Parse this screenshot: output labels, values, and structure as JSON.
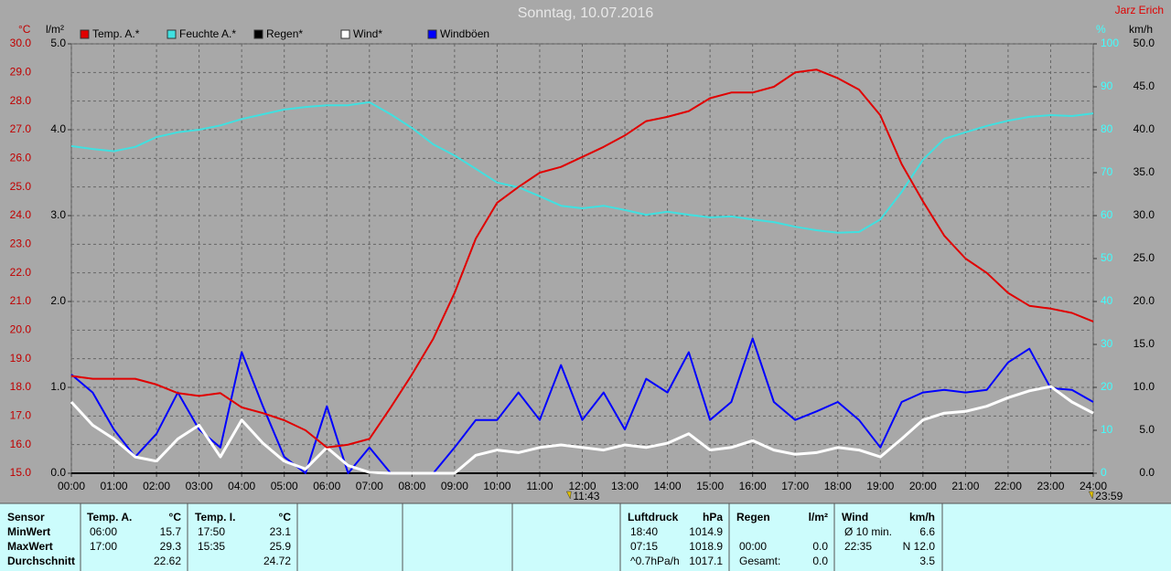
{
  "chart_data": {
    "type": "line",
    "title": "Sonntag, 10.07.2016",
    "subtitle": "Jarz Erich",
    "x": [
      0,
      0.5,
      1,
      1.5,
      2,
      2.5,
      3,
      3.5,
      4,
      4.5,
      5,
      5.5,
      6,
      6.5,
      7,
      7.5,
      8,
      8.5,
      9,
      9.5,
      10,
      10.5,
      11,
      11.5,
      12,
      12.5,
      13,
      13.5,
      14,
      14.5,
      15,
      15.5,
      16,
      16.5,
      17,
      17.5,
      18,
      18.5,
      19,
      19.5,
      20,
      20.5,
      21,
      21.5,
      22,
      22.5,
      23,
      23.5,
      24
    ],
    "xlim": [
      0,
      24
    ],
    "xticks": [
      {
        "value": 0,
        "label": "00:00"
      },
      {
        "value": 1,
        "label": "01:00"
      },
      {
        "value": 2,
        "label": "02:00"
      },
      {
        "value": 3,
        "label": "03:00"
      },
      {
        "value": 4,
        "label": "04:00"
      },
      {
        "value": 5,
        "label": "05:00"
      },
      {
        "value": 6,
        "label": "06:00"
      },
      {
        "value": 7,
        "label": "07:00"
      },
      {
        "value": 8,
        "label": "08:00"
      },
      {
        "value": 9,
        "label": "09:00"
      },
      {
        "value": 10,
        "label": "10:00"
      },
      {
        "value": 11,
        "label": "11:00"
      },
      {
        "value": 12,
        "label": "12:00"
      },
      {
        "value": 13,
        "label": "13:00"
      },
      {
        "value": 14,
        "label": "14:00"
      },
      {
        "value": 15,
        "label": "15:00"
      },
      {
        "value": 16,
        "label": "16:00"
      },
      {
        "value": 17,
        "label": "17:00"
      },
      {
        "value": 18,
        "label": "18:00"
      },
      {
        "value": 19,
        "label": "19:00"
      },
      {
        "value": 20,
        "label": "20:00"
      },
      {
        "value": 21,
        "label": "21:00"
      },
      {
        "value": 22,
        "label": "22:00"
      },
      {
        "value": 23,
        "label": "23:00"
      },
      {
        "value": 24,
        "label": "24:00"
      }
    ],
    "ylabel": "°C",
    "ylim": [
      15,
      30
    ],
    "yticks": [
      {
        "value": 15,
        "label": "15.0"
      },
      {
        "value": 16,
        "label": "16.0"
      },
      {
        "value": 17,
        "label": "17.0"
      },
      {
        "value": 18,
        "label": "18.0"
      },
      {
        "value": 19,
        "label": "19.0"
      },
      {
        "value": 20,
        "label": "20.0"
      },
      {
        "value": 21,
        "label": "21.0"
      },
      {
        "value": 22,
        "label": "22.0"
      },
      {
        "value": 23,
        "label": "23.0"
      },
      {
        "value": 24,
        "label": "24.0"
      },
      {
        "value": 25,
        "label": "25.0"
      },
      {
        "value": 26,
        "label": "26.0"
      },
      {
        "value": 27,
        "label": "27.0"
      },
      {
        "value": 28,
        "label": "28.0"
      },
      {
        "value": 29,
        "label": "29.0"
      },
      {
        "value": 30,
        "label": "30.0"
      }
    ],
    "y3label": "l/m²",
    "y3lim": [
      0,
      5
    ],
    "y3ticks": [
      {
        "value": 0,
        "label": "0.0"
      },
      {
        "value": 1,
        "label": "1.0"
      },
      {
        "value": 2,
        "label": "2.0"
      },
      {
        "value": 3,
        "label": "3.0"
      },
      {
        "value": 4,
        "label": "4.0"
      },
      {
        "value": 5,
        "label": "5.0"
      }
    ],
    "y2label": "%",
    "y2lim": [
      0,
      100
    ],
    "y2ticks": [
      0,
      10,
      20,
      30,
      40,
      50,
      60,
      70,
      80,
      90,
      100
    ],
    "y4label": "km/h",
    "y4lim": [
      0,
      50
    ],
    "y4ticks": [
      {
        "value": 0,
        "label": "0.0"
      },
      {
        "value": 5,
        "label": "5.0"
      },
      {
        "value": 10,
        "label": "10.0"
      },
      {
        "value": 15,
        "label": "15.0"
      },
      {
        "value": 20,
        "label": "20.0"
      },
      {
        "value": 25,
        "label": "25.0"
      },
      {
        "value": 30,
        "label": "30.0"
      },
      {
        "value": 35,
        "label": "35.0"
      },
      {
        "value": 40,
        "label": "40.0"
      },
      {
        "value": 45,
        "label": "45.0"
      },
      {
        "value": 50,
        "label": "50.0"
      }
    ],
    "grid": true,
    "annotations": [
      {
        "text": "11:43",
        "x": 11.7167
      },
      {
        "text": "23:59",
        "x": 23.9833
      }
    ],
    "series": [
      {
        "name": "Temp. A.*",
        "color": "#e00000",
        "axis": "y",
        "values": [
          18.4,
          18.3,
          18.3,
          18.3,
          18.1,
          17.8,
          17.7,
          17.8,
          17.3,
          17.1,
          16.85,
          16.5,
          15.9,
          16.0,
          16.2,
          17.3,
          18.45,
          19.7,
          21.3,
          23.2,
          24.45,
          25.0,
          25.5,
          25.7,
          26.05,
          26.4,
          26.8,
          27.3,
          27.45,
          27.65,
          28.1,
          28.3,
          28.3,
          28.5,
          29.0,
          29.1,
          28.8,
          28.4,
          27.5,
          25.8,
          24.5,
          23.3,
          22.5,
          22.0,
          21.3,
          20.85,
          20.75,
          20.6,
          20.3
        ]
      },
      {
        "name": "Feuchte A.*",
        "color": "#40e0e0",
        "axis": "y2",
        "values": [
          76.2,
          75.5,
          75,
          76,
          78.3,
          79.4,
          80,
          81,
          82.5,
          83.6,
          84.7,
          85.3,
          85.7,
          85.7,
          86.4,
          83.6,
          80.4,
          76.6,
          74,
          70.9,
          67.7,
          66.6,
          64.5,
          62.3,
          61.7,
          62.3,
          61.3,
          60.2,
          60.9,
          60.2,
          59.6,
          59.8,
          59.1,
          58.5,
          57.4,
          56.6,
          56,
          56.2,
          59.1,
          65.5,
          73,
          77.9,
          79.4,
          80.9,
          82.1,
          83,
          83.4,
          83.2,
          83.8
        ]
      },
      {
        "name": "Regen*",
        "color": "#000000",
        "axis": "y3",
        "values": [
          0,
          0,
          0,
          0,
          0,
          0,
          0,
          0,
          0,
          0,
          0,
          0,
          0,
          0,
          0,
          0,
          0,
          0,
          0,
          0,
          0,
          0,
          0,
          0,
          0,
          0,
          0,
          0,
          0,
          0,
          0,
          0,
          0,
          0,
          0,
          0,
          0,
          0,
          0,
          0,
          0,
          0,
          0,
          0,
          0,
          0,
          0,
          0,
          0
        ]
      },
      {
        "name": "Wind*",
        "color": "#ffffff",
        "axis": "y4",
        "values": [
          8.3,
          5.6,
          4,
          1.9,
          1.4,
          4,
          5.6,
          1.9,
          6.2,
          3.5,
          1.4,
          0.5,
          3,
          0.9,
          0.1,
          0,
          0,
          0,
          0,
          2.1,
          2.7,
          2.4,
          3,
          3.3,
          3,
          2.7,
          3.3,
          3,
          3.5,
          4.6,
          2.7,
          3,
          3.8,
          2.7,
          2.2,
          2.4,
          3,
          2.7,
          1.9,
          4,
          6.2,
          7,
          7.2,
          7.8,
          8.8,
          9.6,
          10.1,
          8.3,
          7
        ]
      },
      {
        "name": "Windböen",
        "color": "#0000ff",
        "axis": "y4",
        "values": [
          11.5,
          9.4,
          5.1,
          1.9,
          4.6,
          9.4,
          5.1,
          3,
          14.1,
          7.8,
          1.9,
          0,
          7.8,
          0,
          3,
          0,
          0,
          0,
          3,
          6.2,
          6.2,
          9.4,
          6.2,
          12.6,
          6.2,
          9.4,
          5.1,
          11,
          9.4,
          14.1,
          6.2,
          8.3,
          15.7,
          8.3,
          6.2,
          7.2,
          8.3,
          6.2,
          3,
          8.3,
          9.4,
          9.7,
          9.4,
          9.7,
          12.9,
          14.5,
          9.9,
          9.7,
          8.3
        ]
      }
    ]
  },
  "table": {
    "row_labels": [
      "Sensor",
      "MinWert",
      "MaxWert",
      "Durchschnitt"
    ],
    "sections": [
      {
        "title": "Temp. A.",
        "unit": "°C",
        "min": {
          "time": "06:00",
          "value": "15.7"
        },
        "max": {
          "time": "17:00",
          "value": "29.3"
        },
        "avg": {
          "value": "22.62"
        }
      },
      {
        "title": "Temp. I.",
        "unit": "°C",
        "min": {
          "time": "17:50",
          "value": "23.1"
        },
        "max": {
          "time": "15:35",
          "value": "25.9"
        },
        "avg": {
          "value": "24.72"
        }
      },
      {
        "title": "Luftdruck",
        "unit": "hPa",
        "min": {
          "time": "18:40",
          "value": "1014.9"
        },
        "max": {
          "time": "07:15",
          "value": "1018.9"
        },
        "avg": {
          "time": "^0.7hPa/h",
          "value": "1017.1"
        }
      },
      {
        "title": "Regen",
        "unit": "l/m²",
        "max": {
          "time": "00:00",
          "value": "0.0"
        },
        "avg": {
          "time": "Gesamt:",
          "value": "0.0"
        }
      },
      {
        "title": "Wind",
        "unit": "km/h",
        "min": {
          "time": "Ø 10 min.",
          "value": "6.6"
        },
        "max": {
          "time": "22:35",
          "value": "N 12.0"
        },
        "avg": {
          "value": "3.5"
        }
      }
    ]
  }
}
